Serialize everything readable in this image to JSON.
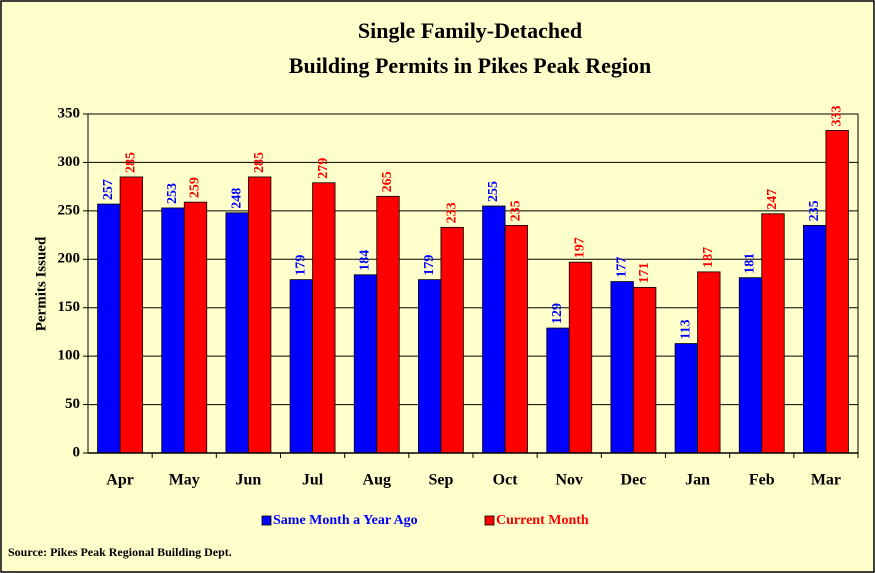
{
  "chart_data": {
    "type": "bar",
    "title": "Single Family-Detached",
    "subtitle": "Building Permits in Pikes Peak Region",
    "y_label": "Permits Issued",
    "source": "Source: Pikes Peak Regional Building Dept.",
    "categories": [
      "Apr",
      "May",
      "Jun",
      "Jul",
      "Aug",
      "Sep",
      "Oct",
      "Nov",
      "Dec",
      "Jan",
      "Feb",
      "Mar"
    ],
    "series": [
      {
        "name": "Same Month a Year Ago",
        "color": "#0000ff",
        "values": [
          257,
          253,
          248,
          179,
          184,
          179,
          255,
          129,
          177,
          113,
          181,
          235
        ]
      },
      {
        "name": "Current Month",
        "color": "#ff0000",
        "values": [
          285,
          259,
          285,
          279,
          265,
          233,
          235,
          197,
          171,
          187,
          247,
          333
        ]
      }
    ],
    "ylim": [
      0,
      350
    ],
    "yticks": [
      0,
      50,
      100,
      150,
      200,
      250,
      300,
      350
    ],
    "grid": true,
    "legend": "bottom"
  }
}
